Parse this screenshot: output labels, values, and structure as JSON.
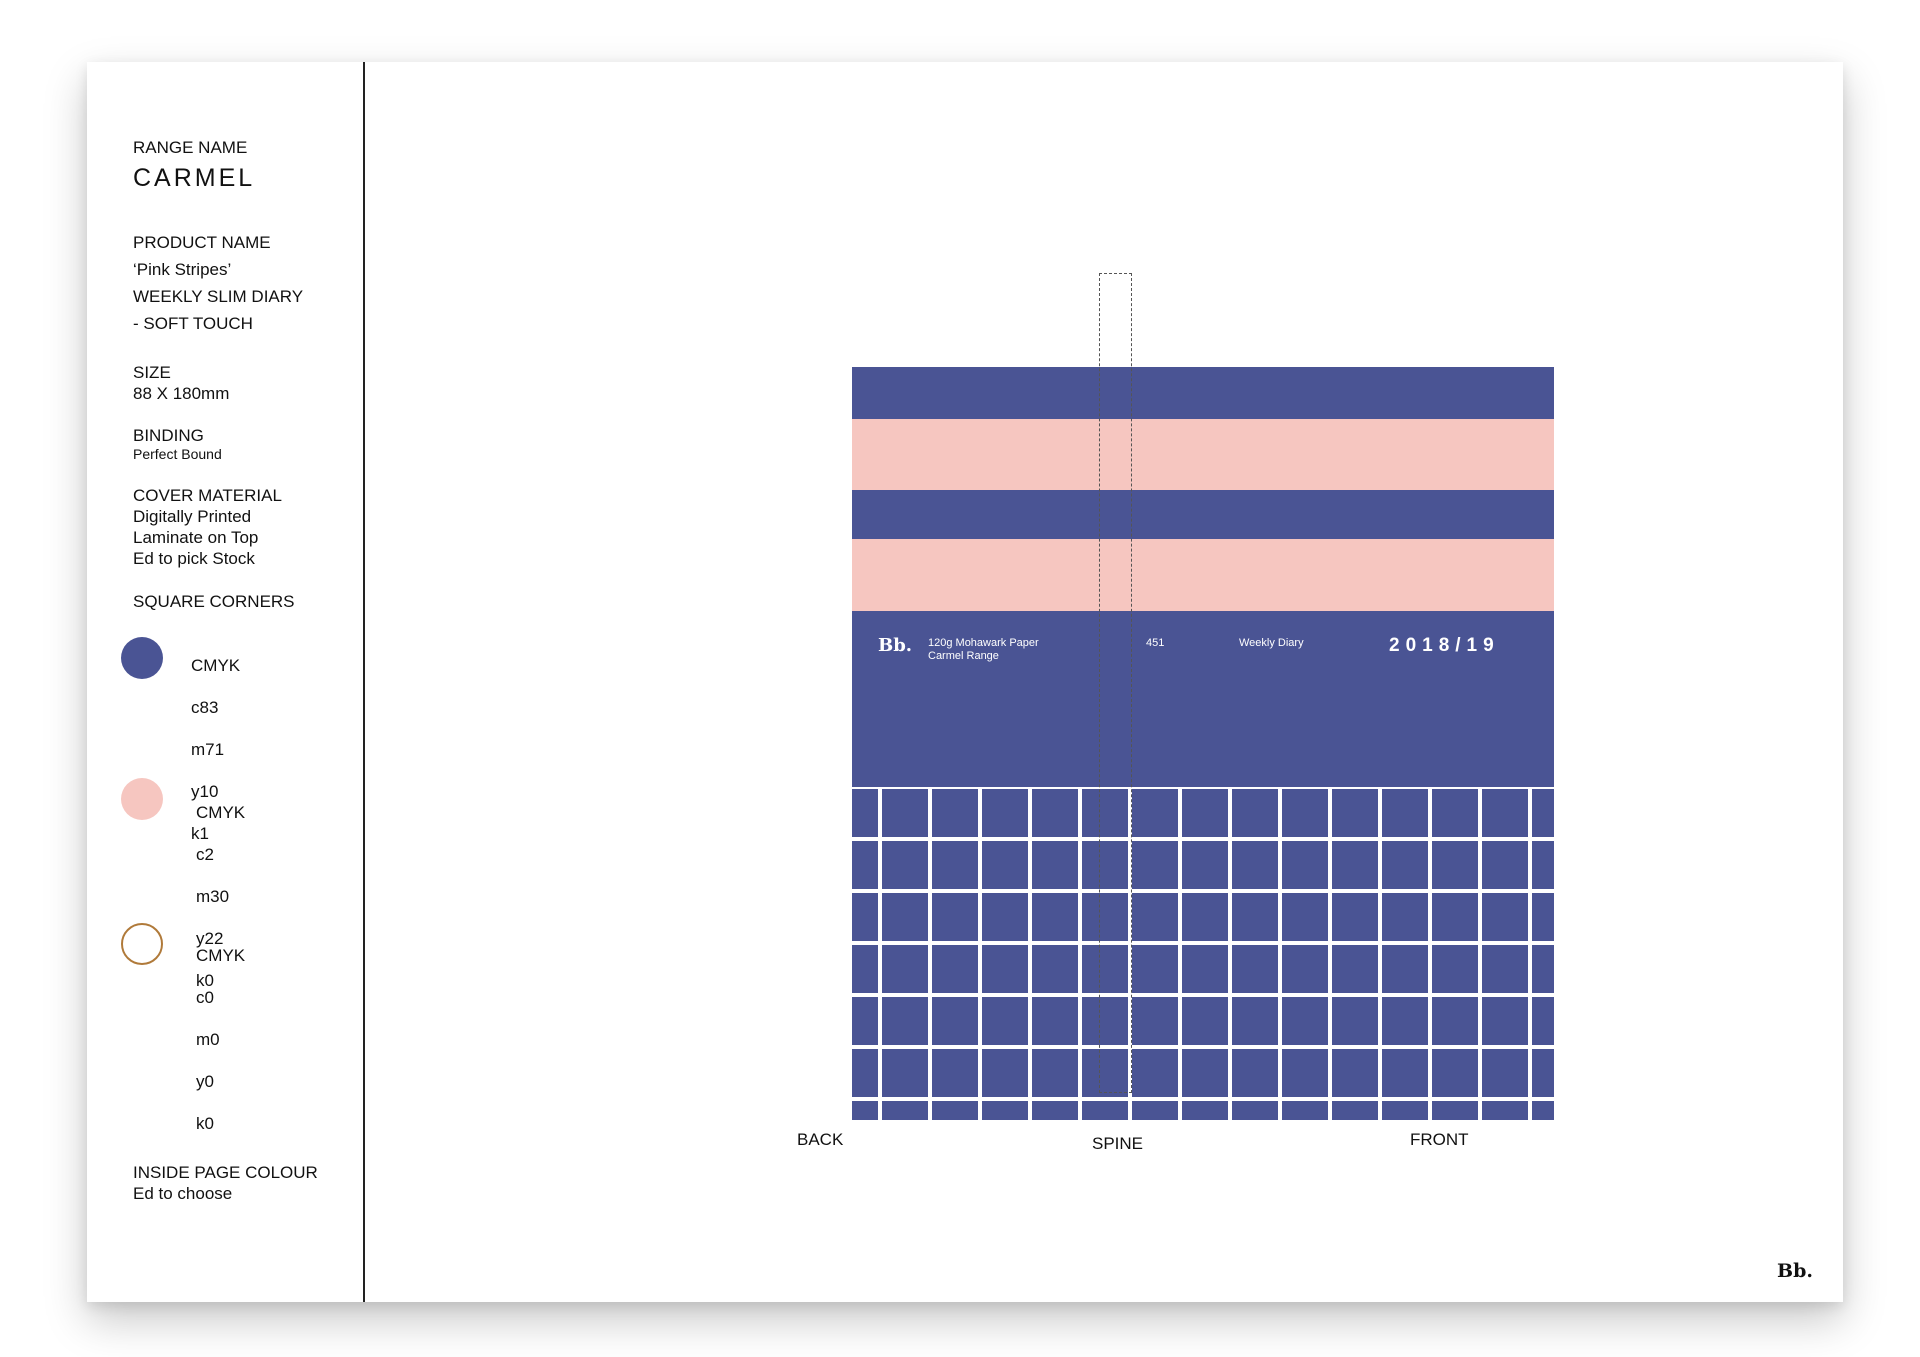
{
  "sidebar": {
    "range_label": "RANGE NAME",
    "range_name": "CARMEL",
    "product_label": "PRODUCT NAME",
    "product_line1": "‘Pink Stripes’",
    "product_line2": "WEEKLY SLIM DIARY",
    "product_line3": "- SOFT TOUCH",
    "size_label": "SIZE",
    "size_value": "88 X 180mm",
    "binding_label": "BINDING",
    "binding_value": "Perfect Bound",
    "cover_label": "COVER MATERIAL",
    "cover_line1": "Digitally Printed",
    "cover_line2": "Laminate on Top",
    "cover_line3": "Ed to pick Stock",
    "corners_label": "SQUARE CORNERS",
    "swatches": [
      {
        "color": "#4a5494",
        "title": "CMYK",
        "c": "c83",
        "m": "m71",
        "y": "y10",
        "k": "k1"
      },
      {
        "color": "#f6c6c0",
        "title": "CMYK",
        "c": "c2",
        "m": "m30",
        "y": "y22",
        "k": "k0"
      },
      {
        "color": "#ffffff",
        "outline": "#b07a3a",
        "title": "CMYK",
        "c": "c0",
        "m": "m0",
        "y": "y0",
        "k": "k0"
      }
    ],
    "inside_label": "INSIDE PAGE COLOUR",
    "inside_value": "Ed to choose"
  },
  "cover": {
    "navy": "#4a5494",
    "pink": "#f6c6c0",
    "logo": "Bb.",
    "paper_line1": "120g Mohawark Paper",
    "paper_line2": "Carmel Range",
    "code": "451",
    "product": "Weekly Diary",
    "year": "2018/19"
  },
  "labels": {
    "back": "BACK",
    "spine": "SPINE",
    "front": "FRONT"
  },
  "footer_logo": "Bb."
}
